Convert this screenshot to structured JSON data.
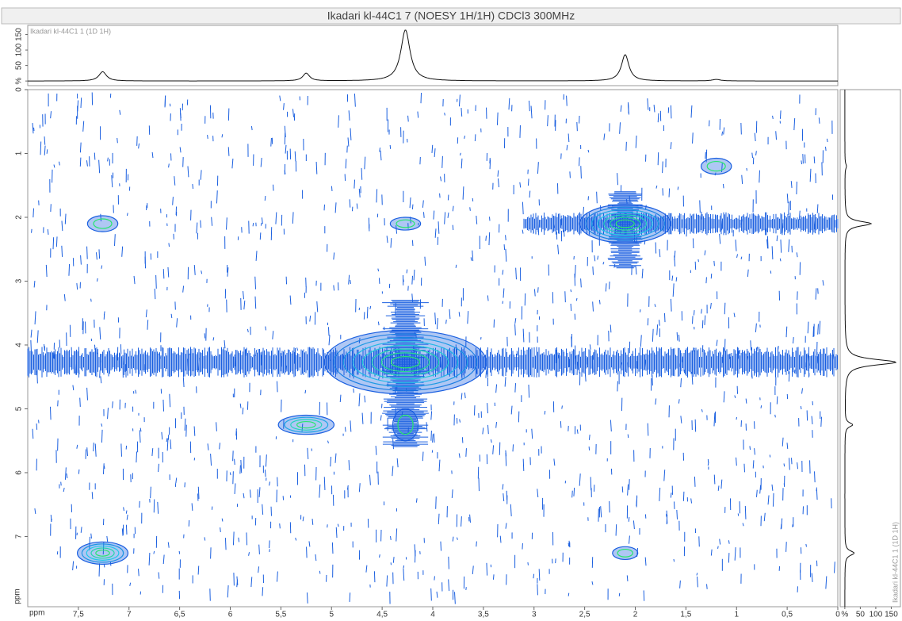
{
  "title": "Ikadari kl-44C1 7 (NOESY 1H/1H) CDCl3 300MHz",
  "chart_data": [
    {
      "type": "projection-top",
      "label": "Ikadari kl-44C1 1 (1D 1H)",
      "peaks": [
        {
          "x": 7.26,
          "height": 30,
          "width": 0.09
        },
        {
          "x": 5.25,
          "height": 25,
          "width": 0.08
        },
        {
          "x": 4.27,
          "height": 165,
          "width": 0.11
        },
        {
          "x": 2.1,
          "height": 85,
          "width": 0.09
        },
        {
          "x": 1.2,
          "height": 5,
          "width": 0.1
        }
      ],
      "ylim": [
        -15,
        177
      ],
      "yticks": [
        {
          "value": 0,
          "label": "%"
        },
        50,
        100,
        150
      ]
    },
    {
      "type": "contour",
      "xlabel": "ppm",
      "ylabel": "ppm",
      "xlim": [
        8,
        0
      ],
      "ylim": [
        0,
        8.1
      ],
      "xticks": [
        {
          "value": 7.5,
          "label": "7,5"
        },
        7,
        {
          "value": 6.5,
          "label": "6,5"
        },
        6,
        {
          "value": 5.5,
          "label": "5,5"
        },
        5,
        {
          "value": 4.5,
          "label": "4,5"
        },
        4,
        {
          "value": 3.5,
          "label": "3,5"
        },
        3,
        {
          "value": 2.5,
          "label": "2,5"
        },
        2,
        {
          "value": 1.5,
          "label": "1,5"
        },
        1,
        {
          "value": 0.5,
          "label": "0,5"
        },
        0
      ],
      "yticks": [
        0,
        1,
        2,
        3,
        4,
        5,
        6,
        7
      ],
      "peaks": [
        {
          "x": 7.26,
          "y": 7.26,
          "w": 0.5,
          "h": 0.35,
          "levels": 5
        },
        {
          "x": 5.25,
          "y": 5.25,
          "w": 0.55,
          "h": 0.3,
          "levels": 4
        },
        {
          "x": 4.27,
          "y": 4.27,
          "w": 1.6,
          "h": 1.0,
          "levels": 8
        },
        {
          "x": 2.1,
          "y": 2.1,
          "w": 0.9,
          "h": 0.6,
          "levels": 7
        },
        {
          "x": 1.2,
          "y": 1.2,
          "w": 0.3,
          "h": 0.25,
          "levels": 2
        },
        {
          "x": 7.26,
          "y": 2.1,
          "w": 0.3,
          "h": 0.25,
          "levels": 2
        },
        {
          "x": 4.27,
          "y": 2.1,
          "w": 0.3,
          "h": 0.2,
          "levels": 2
        },
        {
          "x": 2.1,
          "y": 7.26,
          "w": 0.25,
          "h": 0.2,
          "levels": 2
        },
        {
          "x": 4.27,
          "y": 5.25,
          "w": 0.25,
          "h": 0.5,
          "levels": 2
        }
      ],
      "ridges": [
        {
          "y": 4.27,
          "x": [
            8,
            0
          ],
          "thickness": 0.2
        },
        {
          "y": 2.1,
          "x": [
            3.1,
            0
          ],
          "thickness": 0.15
        },
        {
          "x": 4.27,
          "y": [
            3.3,
            5.6
          ],
          "thickness": 0.2
        },
        {
          "x": 2.1,
          "y": [
            1.6,
            2.8
          ],
          "thickness": 0.15
        }
      ]
    },
    {
      "type": "projection-right",
      "label": "Ikadari kl-44C1 1 (1D 1H)",
      "peaks": [
        {
          "y": 7.26,
          "height": 30,
          "width": 0.09
        },
        {
          "y": 5.25,
          "height": 25,
          "width": 0.08
        },
        {
          "y": 4.27,
          "height": 165,
          "width": 0.11
        },
        {
          "y": 2.1,
          "height": 85,
          "width": 0.09
        },
        {
          "y": 1.2,
          "height": 5,
          "width": 0.1
        }
      ],
      "xlim": [
        -15,
        177
      ],
      "xticks": [
        {
          "value": 0,
          "label": "%"
        },
        50,
        100,
        150
      ]
    }
  ]
}
